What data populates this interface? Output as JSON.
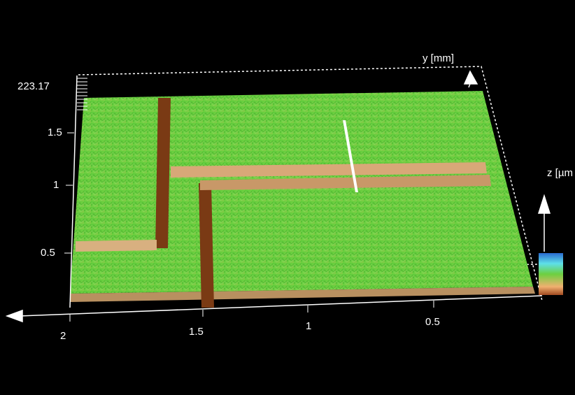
{
  "axes": {
    "vertical_max": "223.17",
    "vertical_ticks": [
      "1.5",
      "1",
      "0.5"
    ],
    "bottom_ticks": [
      "2",
      "1.5",
      "1",
      "0.5"
    ],
    "y_label": "y [mm]",
    "z_label": "z [µm"
  }
}
